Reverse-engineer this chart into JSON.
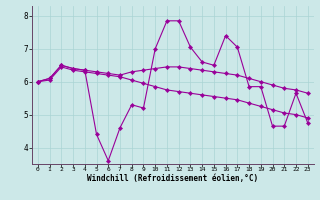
{
  "xlabel": "Windchill (Refroidissement éolien,°C)",
  "bg_color": "#cce8e8",
  "line_color": "#990099",
  "grid_color": "#aad4d4",
  "xlim": [
    -0.5,
    23.5
  ],
  "ylim": [
    3.5,
    8.3
  ],
  "yticks": [
    4,
    5,
    6,
    7,
    8
  ],
  "xticks": [
    0,
    1,
    2,
    3,
    4,
    5,
    6,
    7,
    8,
    9,
    10,
    11,
    12,
    13,
    14,
    15,
    16,
    17,
    18,
    19,
    20,
    21,
    22,
    23
  ],
  "line1": [
    6.0,
    6.1,
    6.5,
    6.4,
    6.35,
    4.4,
    3.6,
    4.6,
    5.3,
    5.2,
    7.0,
    7.85,
    7.85,
    7.05,
    6.6,
    6.5,
    7.4,
    7.05,
    5.85,
    5.85,
    4.65,
    4.65,
    5.65,
    4.75
  ],
  "line2": [
    6.0,
    6.1,
    6.5,
    6.4,
    6.35,
    6.3,
    6.25,
    6.2,
    6.3,
    6.35,
    6.4,
    6.45,
    6.45,
    6.4,
    6.35,
    6.3,
    6.25,
    6.2,
    6.1,
    6.0,
    5.9,
    5.8,
    5.75,
    5.65
  ],
  "line3": [
    6.0,
    6.05,
    6.45,
    6.35,
    6.3,
    6.25,
    6.2,
    6.15,
    6.05,
    5.95,
    5.85,
    5.75,
    5.7,
    5.65,
    5.6,
    5.55,
    5.5,
    5.45,
    5.35,
    5.25,
    5.15,
    5.05,
    5.0,
    4.9
  ]
}
